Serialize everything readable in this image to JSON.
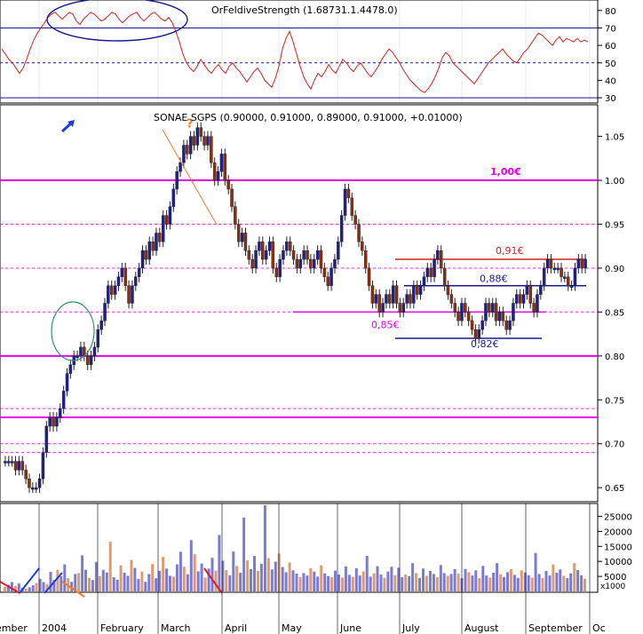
{
  "chart_data": [
    {
      "type": "line",
      "panel": "rsi",
      "header_text": "OrFeldiveStrength (1.68731.1.4478.0)",
      "y_ticks": [
        30,
        40,
        50,
        60,
        70,
        80
      ],
      "ylim": [
        28,
        85
      ],
      "levels": [
        {
          "name": "overbought",
          "value": 70,
          "style": "solid"
        },
        {
          "name": "middle",
          "value": 50,
          "style": "dashed"
        },
        {
          "name": "oversold",
          "value": 30,
          "style": "solid"
        }
      ],
      "x": [
        0,
        4,
        8,
        12,
        16,
        20,
        24,
        28,
        32,
        36,
        40,
        44,
        48,
        52,
        56,
        60,
        64,
        68,
        72,
        76,
        80,
        84,
        88,
        92,
        96,
        100,
        104,
        108,
        112,
        116,
        120,
        124,
        128,
        132,
        136,
        140,
        144,
        148,
        152,
        156,
        160,
        164,
        168,
        172,
        176,
        180,
        184,
        188,
        192,
        196,
        200,
        204,
        208,
        212,
        216,
        220,
        224,
        228,
        232,
        236,
        240,
        244,
        248,
        252,
        256,
        260,
        264,
        268,
        272,
        276,
        280,
        284,
        288,
        292,
        296,
        300,
        304,
        308,
        312,
        316,
        320,
        324,
        328,
        332,
        336,
        340,
        344,
        348,
        352,
        356,
        360,
        364,
        368,
        372,
        376,
        380,
        384,
        388,
        392,
        396,
        400,
        404,
        408,
        412,
        416,
        420,
        424,
        428,
        432,
        436,
        440,
        444,
        448,
        452,
        456,
        460,
        464,
        468,
        472,
        476,
        480,
        484,
        488,
        492,
        496,
        500,
        504,
        508,
        512,
        516,
        520,
        524,
        528,
        532,
        536,
        540,
        544,
        548,
        552,
        556,
        560,
        564,
        568,
        572,
        576,
        580,
        584,
        588,
        592,
        596,
        600,
        604,
        608,
        612,
        616,
        620,
        624,
        628,
        632,
        636,
        640,
        644,
        648,
        652,
        656,
        660
      ],
      "values": [
        58,
        55,
        52,
        50,
        47,
        44,
        47,
        52,
        58,
        63,
        67,
        70,
        73,
        76,
        78,
        79,
        77,
        75,
        77,
        79,
        78,
        74,
        72,
        75,
        77,
        79,
        78,
        76,
        74,
        75,
        77,
        79,
        78,
        75,
        73,
        75,
        77,
        78,
        79,
        76,
        74,
        76,
        78,
        79,
        77,
        75,
        74,
        76,
        73,
        68,
        62,
        55,
        50,
        47,
        45,
        48,
        52,
        49,
        46,
        44,
        47,
        49,
        46,
        44,
        48,
        50,
        47,
        45,
        42,
        39,
        42,
        45,
        47,
        44,
        40,
        38,
        36,
        41,
        48,
        58,
        64,
        68,
        62,
        55,
        48,
        42,
        38,
        35,
        40,
        44,
        42,
        45,
        49,
        46,
        44,
        48,
        52,
        50,
        47,
        45,
        48,
        50,
        47,
        44,
        42,
        45,
        48,
        52,
        55,
        58,
        56,
        53,
        50,
        46,
        43,
        40,
        38,
        36,
        34,
        33,
        35,
        38,
        42,
        47,
        53,
        56,
        54,
        50,
        48,
        46,
        44,
        42,
        40,
        38,
        41,
        44,
        47,
        50,
        52,
        54,
        56,
        58,
        55,
        53,
        51,
        50,
        53,
        56,
        58,
        61,
        64,
        67,
        66,
        64,
        62,
        60,
        63,
        65,
        62,
        64,
        63,
        62,
        64,
        62,
        63,
        62
      ]
    },
    {
      "type": "candlestick",
      "panel": "price",
      "title": "SONAE SGPS (0.90000, 0.91000, 0.89000, 0.91000, +0.01000)",
      "y_ticks": [
        0.65,
        0.7,
        0.75,
        0.8,
        0.85,
        0.9,
        0.95,
        1.0,
        1.05
      ],
      "ylim": [
        0.635,
        1.085
      ],
      "x_labels": [
        "ember",
        "2004",
        "February",
        "March",
        "April",
        "May",
        "June",
        "July",
        "August",
        "September",
        "Oc"
      ],
      "key_levels": [
        {
          "value": 1.0,
          "label": "1,00€",
          "style": "solid",
          "color": "#e600e6"
        },
        {
          "value": 0.8,
          "label": "",
          "style": "solid",
          "color": "#e600e6"
        },
        {
          "value": 0.95,
          "label": "",
          "style": "dashed",
          "color": "#e600e6"
        },
        {
          "value": 0.9,
          "label": "",
          "style": "dashed",
          "color": "#e600e6"
        },
        {
          "value": 0.85,
          "label": "",
          "style": "dashed",
          "color": "#e600e6"
        },
        {
          "value": 0.73,
          "label": "",
          "style": "solid",
          "color": "#e600e6"
        },
        {
          "value": 0.7,
          "label": "",
          "style": "dashed",
          "color": "#e600e6"
        },
        {
          "value": 0.69,
          "label": "",
          "style": "dashed",
          "color": "#e600e6"
        },
        {
          "value": 0.74,
          "label": "",
          "style": "dashed",
          "color": "#e600e6"
        }
      ],
      "annotations": [
        {
          "text": "0,91€",
          "value": 0.91,
          "color": "#d42020"
        },
        {
          "text": "0,88€",
          "value": 0.88,
          "color": "#1a1a8c"
        },
        {
          "text": "0,85€",
          "value": 0.85,
          "color": "#e600e6"
        },
        {
          "text": "0,82€",
          "value": 0.82,
          "color": "#1a1a8c"
        },
        {
          "text": "?",
          "value": 1.05,
          "color": "#f07a30"
        }
      ],
      "close": [
        0.68,
        0.68,
        0.68,
        0.67,
        0.68,
        0.67,
        0.66,
        0.65,
        0.65,
        0.65,
        0.66,
        0.69,
        0.72,
        0.73,
        0.72,
        0.73,
        0.74,
        0.76,
        0.78,
        0.79,
        0.8,
        0.8,
        0.81,
        0.8,
        0.79,
        0.8,
        0.81,
        0.83,
        0.84,
        0.86,
        0.88,
        0.87,
        0.88,
        0.89,
        0.9,
        0.88,
        0.86,
        0.88,
        0.89,
        0.9,
        0.92,
        0.91,
        0.93,
        0.92,
        0.94,
        0.93,
        0.96,
        0.95,
        0.97,
        0.99,
        1.01,
        1.02,
        1.04,
        1.03,
        1.05,
        1.04,
        1.06,
        1.05,
        1.04,
        1.05,
        1.02,
        1.0,
        1.01,
        1.03,
        1.0,
        0.99,
        0.97,
        0.95,
        0.93,
        0.94,
        0.92,
        0.91,
        0.9,
        0.92,
        0.93,
        0.91,
        0.92,
        0.93,
        0.9,
        0.89,
        0.91,
        0.92,
        0.93,
        0.92,
        0.91,
        0.9,
        0.91,
        0.92,
        0.91,
        0.9,
        0.91,
        0.92,
        0.9,
        0.89,
        0.88,
        0.9,
        0.91,
        0.93,
        0.96,
        0.99,
        0.98,
        0.96,
        0.95,
        0.93,
        0.92,
        0.9,
        0.88,
        0.86,
        0.87,
        0.85,
        0.86,
        0.87,
        0.86,
        0.88,
        0.86,
        0.85,
        0.86,
        0.87,
        0.86,
        0.88,
        0.87,
        0.88,
        0.89,
        0.9,
        0.89,
        0.91,
        0.92,
        0.9,
        0.88,
        0.87,
        0.86,
        0.85,
        0.84,
        0.86,
        0.85,
        0.84,
        0.83,
        0.82,
        0.83,
        0.84,
        0.86,
        0.85,
        0.86,
        0.84,
        0.85,
        0.84,
        0.83,
        0.84,
        0.86,
        0.87,
        0.86,
        0.87,
        0.88,
        0.86,
        0.85,
        0.87,
        0.88,
        0.9,
        0.91,
        0.9,
        0.9,
        0.9,
        0.89,
        0.89,
        0.88,
        0.88,
        0.9,
        0.91,
        0.9,
        0.91
      ]
    },
    {
      "type": "bar",
      "panel": "volume",
      "unit_label": "x1000",
      "y_ticks": [
        5000,
        10000,
        15000,
        20000,
        25000
      ],
      "ylim": [
        0,
        29000
      ],
      "bar_colors": [
        "#7b7bd6",
        "#e09a70"
      ],
      "values": [
        1500,
        2200,
        3100,
        1800,
        2600,
        1200,
        900,
        1400,
        2000,
        2800,
        4200,
        3100,
        2500,
        6500,
        3800,
        7200,
        5100,
        9000,
        4400,
        3200,
        5800,
        6100,
        12000,
        7200,
        4500,
        3800,
        9800,
        5100,
        7200,
        6300,
        16500,
        4700,
        3900,
        8700,
        6200,
        5200,
        10500,
        7800,
        4100,
        6600,
        3200,
        5800,
        9100,
        4400,
        6800,
        11500,
        7600,
        5200,
        4900,
        9000,
        13200,
        8200,
        5700,
        17100,
        12400,
        6700,
        9300,
        4600,
        7600,
        11200,
        6900,
        18800,
        10200,
        7100,
        5400,
        13300,
        8500,
        6200,
        24600,
        10300,
        7400,
        11800,
        6800,
        9200,
        28700,
        11100,
        7300,
        9900,
        12600,
        8100,
        6400,
        9600,
        7000,
        5900,
        4800,
        6100,
        5300,
        7700,
        6600,
        4900,
        8700,
        6000,
        5100,
        4700,
        6900,
        5600,
        4600,
        8300,
        5500,
        4800,
        7700,
        5300,
        6700,
        11800,
        4900,
        6000,
        8400,
        5600,
        4500,
        6600,
        8200,
        5400,
        7900,
        4700,
        5600,
        5100,
        9400,
        6100,
        4500,
        7600,
        5200,
        6800,
        5800,
        4700,
        8800,
        6100,
        5200,
        5800,
        7400,
        5900,
        4400,
        7500,
        6400,
        5300,
        7000,
        4400,
        8500,
        5300,
        4600,
        6200,
        9400,
        5700,
        4800,
        6400,
        7400,
        5500,
        4500,
        7000,
        6300,
        5400,
        4600,
        12800,
        5800,
        4400,
        6800,
        5300,
        9000,
        6200,
        7300,
        5200,
        4400,
        6000,
        9400,
        7100,
        5400,
        4200
      ]
    }
  ]
}
